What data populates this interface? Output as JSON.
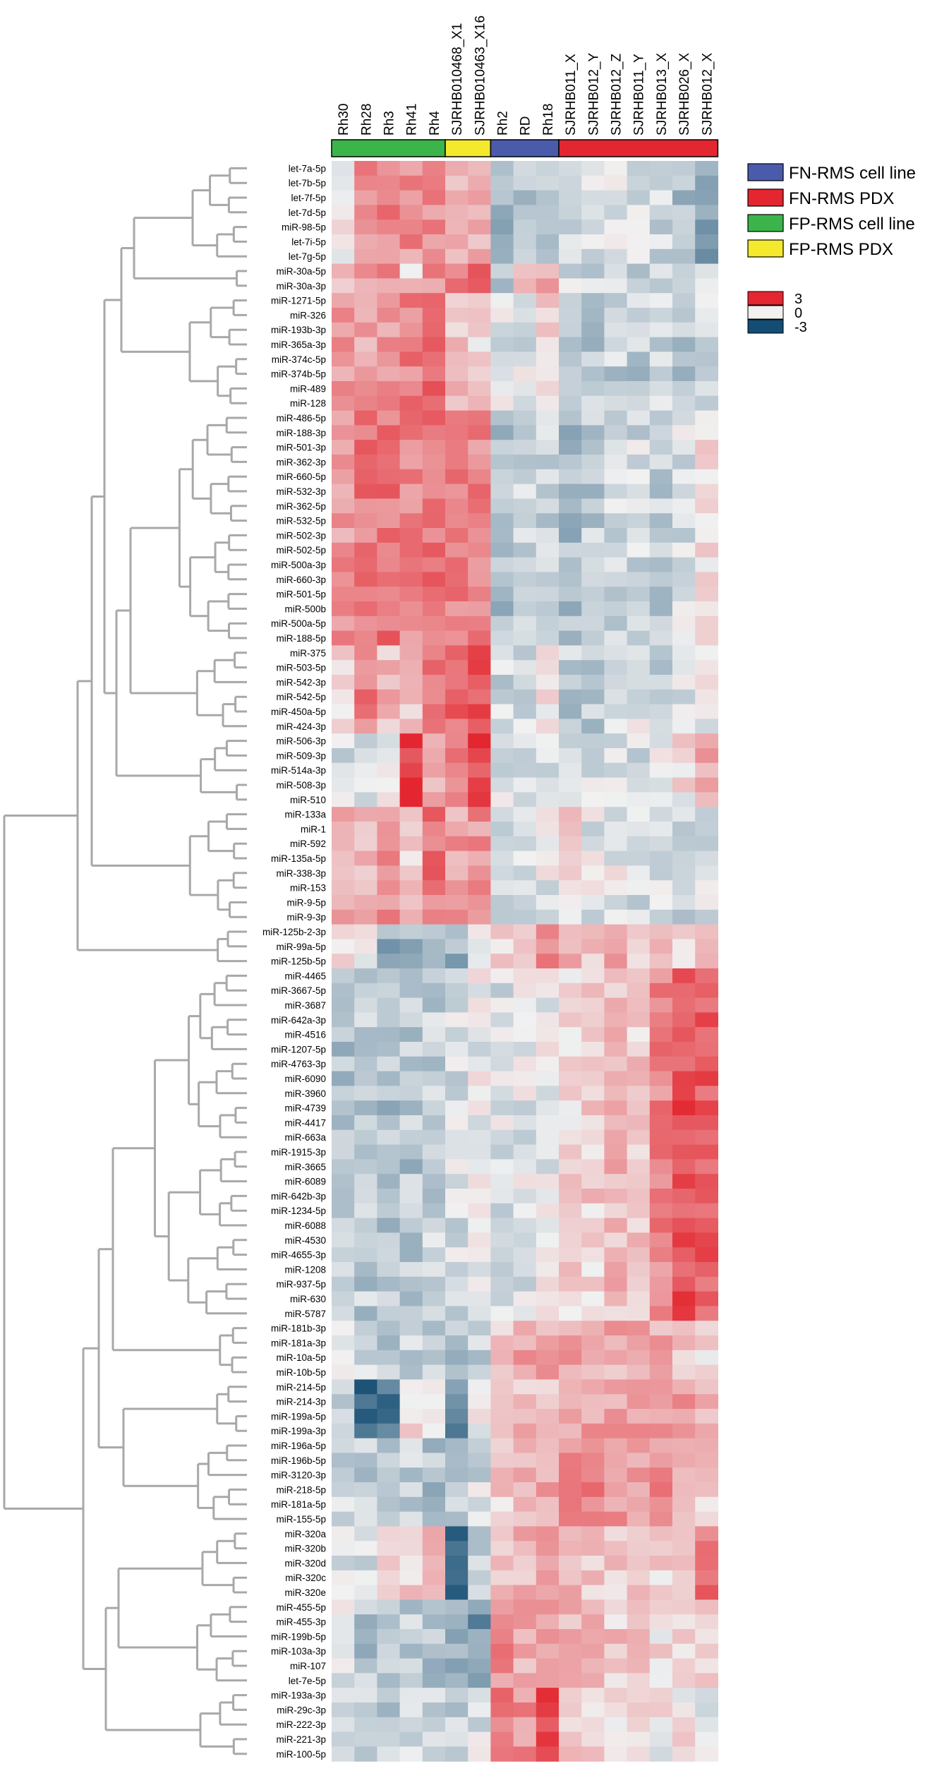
{
  "chart_data": {
    "type": "heatmap",
    "columns": [
      "Rh30",
      "Rh28",
      "Rh3",
      "Rh41",
      "Rh4",
      "SJRHB010468_X1",
      "SJRHB010463_X16",
      "Rh2",
      "RD",
      "Rh18",
      "SJRHB011_X",
      "SJRHB012_Y",
      "SJRHB012_Z",
      "SJRHB011_Y",
      "SJRHB013_X",
      "SJRHB026_X",
      "SJRHB012_X"
    ],
    "column_groups": [
      {
        "label": "FP-RMS cell line",
        "color": "#3bb54a",
        "start": 0,
        "count": 5
      },
      {
        "label": "FP-RMS PDX",
        "color": "#f4e92c",
        "start": 5,
        "count": 2
      },
      {
        "label": "FN-RMS cell line",
        "color": "#4a5bab",
        "start": 7,
        "count": 3
      },
      {
        "label": "FN-RMS PDX",
        "color": "#e3262f",
        "start": 10,
        "count": 7
      }
    ],
    "rows": [
      "let-7a-5p",
      "let-7b-5p",
      "let-7f-5p",
      "let-7d-5p",
      "miR-98-5p",
      "let-7i-5p",
      "let-7g-5p",
      "miR-30a-5p",
      "miR-30a-3p",
      "miR-1271-5p",
      "miR-326",
      "miR-193b-3p",
      "miR-365a-3p",
      "miR-374c-5p",
      "miR-374b-5p",
      "miR-489",
      "miR-128",
      "miR-486-5p",
      "miR-188-3p",
      "miR-501-3p",
      "miR-362-3p",
      "miR-660-5p",
      "miR-532-3p",
      "miR-362-5p",
      "miR-532-5p",
      "miR-502-3p",
      "miR-502-5p",
      "miR-500a-3p",
      "miR-660-3p",
      "miR-501-5p",
      "miR-500b",
      "miR-500a-5p",
      "miR-188-5p",
      "miR-375",
      "miR-503-5p",
      "miR-542-3p",
      "miR-542-5p",
      "miR-450a-5p",
      "miR-424-3p",
      "miR-506-3p",
      "miR-509-3p",
      "miR-514a-3p",
      "miR-508-3p",
      "miR-510",
      "miR-133a",
      "miR-1",
      "miR-592",
      "miR-135a-5p",
      "miR-338-3p",
      "miR-153",
      "miR-9-5p",
      "miR-9-3p",
      "miR-125b-2-3p",
      "miR-99a-5p",
      "miR-125b-5p",
      "miR-4465",
      "miR-3667-5p",
      "miR-3687",
      "miR-642a-3p",
      "miR-4516",
      "miR-1207-5p",
      "miR-4763-3p",
      "miR-6090",
      "miR-3960",
      "miR-4739",
      "miR-4417",
      "miR-663a",
      "miR-1915-3p",
      "miR-3665",
      "miR-6089",
      "miR-642b-3p",
      "miR-1234-5p",
      "miR-6088",
      "miR-4530",
      "miR-4655-3p",
      "miR-1208",
      "miR-937-5p",
      "miR-630",
      "miR-5787",
      "miR-181b-3p",
      "miR-181a-3p",
      "miR-10a-5p",
      "miR-10b-5p",
      "miR-214-5p",
      "miR-214-3p",
      "miR-199a-5p",
      "miR-199a-3p",
      "miR-196a-5p",
      "miR-196b-5p",
      "miR-3120-3p",
      "miR-218-5p",
      "miR-181a-5p",
      "miR-155-5p",
      "miR-320a",
      "miR-320b",
      "miR-320d",
      "miR-320c",
      "miR-320e",
      "miR-455-5p",
      "miR-455-3p",
      "miR-199b-5p",
      "miR-103a-3p",
      "miR-107",
      "let-7e-5p",
      "miR-193a-3p",
      "miR-29c-3p",
      "miR-222-3p",
      "miR-221-3p",
      "miR-100-5p"
    ],
    "row_clusters": [
      {
        "start": 0,
        "end": 6,
        "profile": [
          0.3,
          1.4,
          1.6,
          1.4,
          1.4,
          1.0,
          1.0,
          -1.2,
          -0.7,
          -0.6,
          -0.6,
          -0.4,
          -0.3,
          -0.4,
          -0.5,
          -0.9,
          -1.3
        ]
      },
      {
        "start": 7,
        "end": 8,
        "profile": [
          0.5,
          1.4,
          1.4,
          0.5,
          1.4,
          1.8,
          1.8,
          -0.6,
          0.5,
          1.0,
          -0.5,
          -0.6,
          -0.4,
          -0.5,
          -0.5,
          -0.8,
          -0.5
        ]
      },
      {
        "start": 9,
        "end": 16,
        "profile": [
          1.2,
          1.2,
          1.4,
          1.6,
          2.0,
          0.6,
          0.4,
          -0.3,
          -0.3,
          0.6,
          -0.5,
          -0.7,
          -0.6,
          -0.7,
          -0.6,
          -0.8,
          -0.4
        ]
      },
      {
        "start": 17,
        "end": 32,
        "profile": [
          1.3,
          1.8,
          1.8,
          1.6,
          1.9,
          1.6,
          1.6,
          -0.9,
          -0.6,
          -0.6,
          -0.9,
          -0.7,
          -0.5,
          -0.4,
          -0.7,
          -0.3,
          0.4
        ]
      },
      {
        "start": 33,
        "end": 38,
        "profile": [
          0.2,
          1.8,
          0.8,
          0.8,
          1.6,
          2.0,
          2.4,
          -0.5,
          -0.3,
          0.2,
          -0.7,
          -0.8,
          -0.5,
          -0.3,
          -0.5,
          -0.3,
          -0.1
        ]
      },
      {
        "start": 39,
        "end": 43,
        "profile": [
          -0.4,
          -0.3,
          -0.2,
          2.8,
          1.0,
          1.6,
          2.6,
          -0.3,
          -0.2,
          -0.2,
          -0.2,
          -0.3,
          -0.3,
          -0.3,
          -0.2,
          0.2,
          1.0
        ]
      },
      {
        "start": 44,
        "end": 51,
        "profile": [
          1.0,
          1.0,
          1.6,
          0.6,
          1.8,
          1.2,
          1.4,
          -0.6,
          -0.2,
          -0.1,
          0.4,
          -0.2,
          -0.1,
          -0.3,
          -0.3,
          -0.4,
          -0.2
        ]
      },
      {
        "start": 52,
        "end": 54,
        "profile": [
          0.2,
          -0.2,
          -1.2,
          -1.0,
          -1.2,
          -1.2,
          0.1,
          0.6,
          1.0,
          1.8,
          0.8,
          0.8,
          1.0,
          0.5,
          0.6,
          0.6,
          0.5
        ]
      },
      {
        "start": 55,
        "end": 78,
        "profile": [
          -0.8,
          -0.7,
          -0.9,
          -0.8,
          -0.6,
          -0.3,
          -0.1,
          -0.3,
          -0.2,
          -0.1,
          0.4,
          0.5,
          0.8,
          0.6,
          1.6,
          2.4,
          2.2
        ]
      },
      {
        "start": 79,
        "end": 82,
        "profile": [
          -0.4,
          -0.6,
          -0.7,
          -0.6,
          -0.8,
          -0.8,
          -0.5,
          0.4,
          1.2,
          1.0,
          1.1,
          1.2,
          1.0,
          0.9,
          1.0,
          0.6,
          0.3
        ]
      },
      {
        "start": 83,
        "end": 86,
        "profile": [
          -0.6,
          -2.4,
          -2.2,
          0.4,
          0.5,
          -1.8,
          0.0,
          1.0,
          0.8,
          0.6,
          1.2,
          1.2,
          1.1,
          1.1,
          1.2,
          1.2,
          0.9
        ]
      },
      {
        "start": 87,
        "end": 92,
        "profile": [
          -0.6,
          -0.6,
          -1.0,
          -0.6,
          -0.9,
          -0.8,
          -0.4,
          0.6,
          1.0,
          1.0,
          1.6,
          1.6,
          1.4,
          1.1,
          1.4,
          1.0,
          0.6
        ]
      },
      {
        "start": 93,
        "end": 97,
        "profile": [
          -0.3,
          -0.5,
          0.5,
          0.5,
          0.6,
          -2.6,
          -0.6,
          0.6,
          0.8,
          1.0,
          0.8,
          0.6,
          0.6,
          0.4,
          0.4,
          0.8,
          1.8
        ]
      },
      {
        "start": 98,
        "end": 103,
        "profile": [
          -0.2,
          -0.8,
          -0.9,
          -0.7,
          -0.8,
          -1.1,
          -1.7,
          1.4,
          1.0,
          1.4,
          1.0,
          0.8,
          0.6,
          0.6,
          0.3,
          0.6,
          0.3
        ]
      },
      {
        "start": 104,
        "end": 108,
        "profile": [
          -0.4,
          -0.5,
          -0.6,
          -0.5,
          -0.6,
          -0.5,
          -0.2,
          1.8,
          1.4,
          2.4,
          0.4,
          0.4,
          0.2,
          0.2,
          0.1,
          0.2,
          0.0
        ]
      }
    ],
    "scale": {
      "min": -3,
      "max": 3,
      "ticks": [
        3,
        0,
        -3
      ],
      "colors": {
        "high": "#e3262f",
        "mid": "#f1f1f1",
        "low": "#144d73"
      }
    },
    "legend": [
      {
        "label": "FN-RMS cell line",
        "color": "#4a5bab"
      },
      {
        "label": "FN-RMS PDX",
        "color": "#e3262f"
      },
      {
        "label": "FP-RMS cell line",
        "color": "#3bb54a"
      },
      {
        "label": "FP-RMS PDX",
        "color": "#f4e92c"
      }
    ]
  }
}
